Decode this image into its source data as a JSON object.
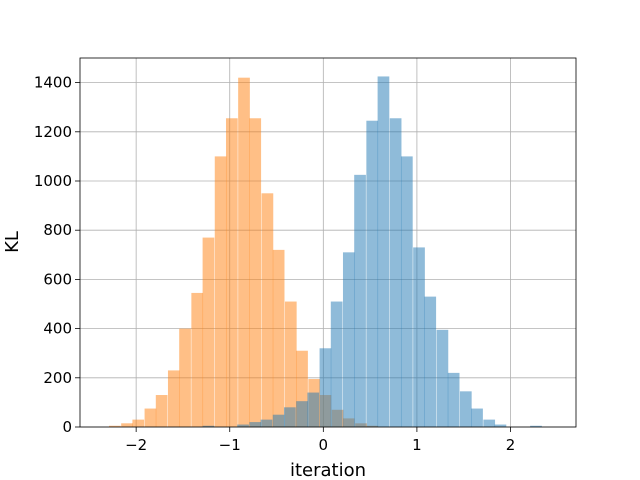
{
  "chart_data": {
    "type": "bar",
    "title": "",
    "xlabel": "iteration",
    "ylabel": "KL",
    "xlim": [
      -2.6,
      2.7
    ],
    "ylim": [
      0,
      1500
    ],
    "grid": true,
    "xticks": [
      -2,
      -1,
      0,
      1,
      2
    ],
    "xtick_labels": [
      "−2",
      "−1",
      "0",
      "1",
      "2"
    ],
    "yticks": [
      0,
      200,
      400,
      600,
      800,
      1000,
      1200,
      1400
    ],
    "ytick_labels": [
      "0",
      "200",
      "400",
      "600",
      "800",
      "1000",
      "1200",
      "1400"
    ],
    "bin_width": 0.125,
    "series": [
      {
        "color": "#ff7f0e",
        "opacity": 0.5,
        "bins": [
          {
            "x0": -2.29,
            "value": 5
          },
          {
            "x0": -2.16,
            "value": 15
          },
          {
            "x0": -2.04,
            "value": 30
          },
          {
            "x0": -1.91,
            "value": 75
          },
          {
            "x0": -1.79,
            "value": 130
          },
          {
            "x0": -1.66,
            "value": 230
          },
          {
            "x0": -1.54,
            "value": 400
          },
          {
            "x0": -1.41,
            "value": 545
          },
          {
            "x0": -1.29,
            "value": 770
          },
          {
            "x0": -1.16,
            "value": 1100
          },
          {
            "x0": -1.04,
            "value": 1255
          },
          {
            "x0": -0.91,
            "value": 1420
          },
          {
            "x0": -0.79,
            "value": 1255
          },
          {
            "x0": -0.66,
            "value": 950
          },
          {
            "x0": -0.54,
            "value": 720
          },
          {
            "x0": -0.41,
            "value": 510
          },
          {
            "x0": -0.29,
            "value": 310
          },
          {
            "x0": -0.16,
            "value": 195
          },
          {
            "x0": -0.04,
            "value": 130
          },
          {
            "x0": 0.09,
            "value": 70
          },
          {
            "x0": 0.21,
            "value": 35
          },
          {
            "x0": 0.34,
            "value": 15
          },
          {
            "x0": 0.46,
            "value": 5
          }
        ]
      },
      {
        "color": "#1f77b4",
        "opacity": 0.5,
        "bins": [
          {
            "x0": -1.29,
            "value": 5
          },
          {
            "x0": -0.92,
            "value": 10
          },
          {
            "x0": -0.79,
            "value": 20
          },
          {
            "x0": -0.67,
            "value": 30
          },
          {
            "x0": -0.54,
            "value": 50
          },
          {
            "x0": -0.42,
            "value": 80
          },
          {
            "x0": -0.29,
            "value": 105
          },
          {
            "x0": -0.17,
            "value": 140
          },
          {
            "x0": -0.04,
            "value": 320
          },
          {
            "x0": 0.08,
            "value": 510
          },
          {
            "x0": 0.21,
            "value": 710
          },
          {
            "x0": 0.33,
            "value": 1025
          },
          {
            "x0": 0.46,
            "value": 1245
          },
          {
            "x0": 0.58,
            "value": 1425
          },
          {
            "x0": 0.71,
            "value": 1255
          },
          {
            "x0": 0.83,
            "value": 1100
          },
          {
            "x0": 0.96,
            "value": 730
          },
          {
            "x0": 1.08,
            "value": 530
          },
          {
            "x0": 1.21,
            "value": 395
          },
          {
            "x0": 1.33,
            "value": 220
          },
          {
            "x0": 1.46,
            "value": 145
          },
          {
            "x0": 1.58,
            "value": 75
          },
          {
            "x0": 1.71,
            "value": 30
          },
          {
            "x0": 1.83,
            "value": 10
          },
          {
            "x0": 2.21,
            "value": 5
          }
        ]
      }
    ]
  }
}
